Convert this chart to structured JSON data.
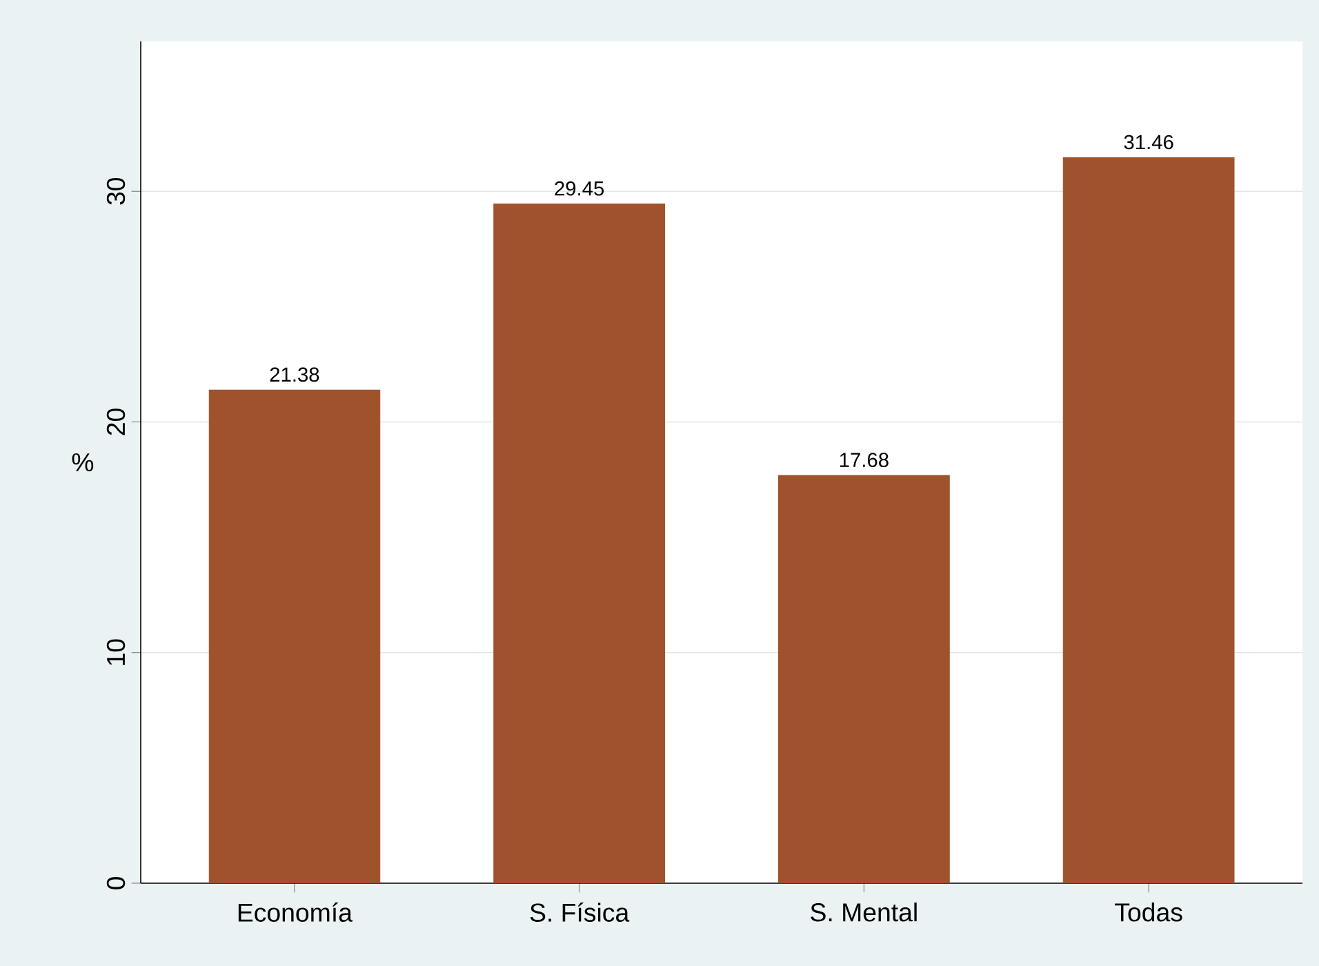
{
  "chart_data": {
    "type": "bar",
    "ylabel": "%",
    "categories": [
      "Economía",
      "S. Física",
      "S. Mental",
      "Todas"
    ],
    "values": [
      21.38,
      29.45,
      17.68,
      31.46
    ],
    "color": "#a0522d",
    "ylim": [
      0,
      36.5
    ],
    "yticks": [
      0,
      10,
      20,
      30
    ],
    "grid": "y",
    "data_labels": true
  }
}
